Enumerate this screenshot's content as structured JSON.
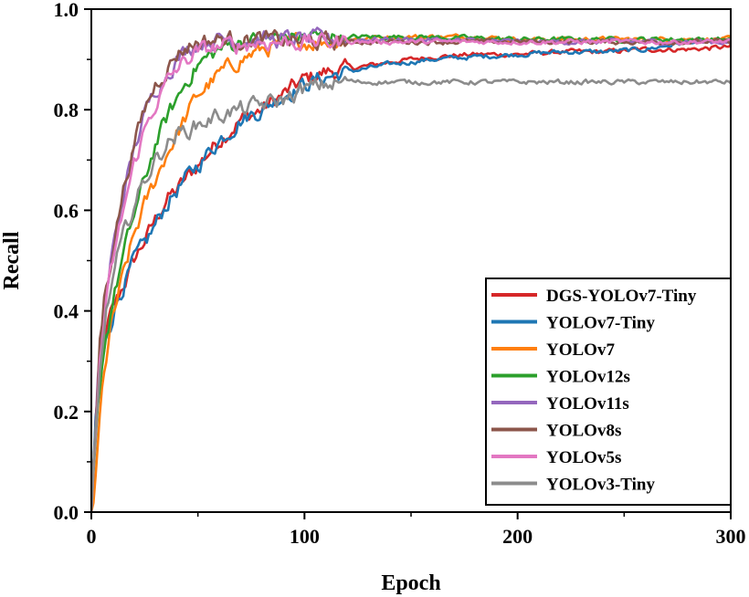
{
  "chart_data": {
    "type": "line",
    "title": "",
    "xlabel": "Epoch",
    "ylabel": "Recall",
    "xlim": [
      0,
      300
    ],
    "ylim": [
      0.0,
      1.0
    ],
    "xticks": [
      0,
      100,
      200,
      300
    ],
    "xtick_labels": [
      "0",
      "100",
      "200",
      "300"
    ],
    "yticks": [
      0.0,
      0.2,
      0.4,
      0.6,
      0.8,
      1.0
    ],
    "ytick_labels": [
      "0.0",
      "0.2",
      "0.4",
      "0.6",
      "0.8",
      "1.0"
    ],
    "grid": false,
    "legend_position": "bottom-right",
    "series": [
      {
        "name": "DGS-YOLOv7-Tiny",
        "color": "#d62728",
        "x": [
          0,
          2,
          5,
          8,
          12,
          16,
          20,
          25,
          30,
          35,
          40,
          50,
          60,
          70,
          80,
          90,
          100,
          110,
          120,
          140,
          160,
          180,
          200,
          220,
          240,
          260,
          280,
          300
        ],
        "y": [
          0.0,
          0.18,
          0.3,
          0.37,
          0.42,
          0.46,
          0.5,
          0.54,
          0.58,
          0.62,
          0.64,
          0.69,
          0.74,
          0.78,
          0.8,
          0.83,
          0.86,
          0.875,
          0.88,
          0.895,
          0.905,
          0.91,
          0.91,
          0.915,
          0.915,
          0.92,
          0.92,
          0.925
        ]
      },
      {
        "name": "YOLOv7-Tiny",
        "color": "#1f77b4",
        "x": [
          0,
          2,
          5,
          8,
          12,
          16,
          20,
          25,
          30,
          35,
          40,
          50,
          60,
          70,
          80,
          90,
          100,
          110,
          120,
          140,
          160,
          180,
          200,
          220,
          240,
          260,
          280,
          300
        ],
        "y": [
          0.0,
          0.18,
          0.3,
          0.37,
          0.42,
          0.46,
          0.5,
          0.53,
          0.57,
          0.61,
          0.64,
          0.69,
          0.74,
          0.78,
          0.8,
          0.83,
          0.85,
          0.865,
          0.875,
          0.89,
          0.9,
          0.905,
          0.91,
          0.915,
          0.915,
          0.92,
          0.935,
          0.935
        ]
      },
      {
        "name": "YOLOv7",
        "color": "#ff7f0e",
        "x": [
          0,
          2,
          4,
          6,
          10,
          15,
          20,
          25,
          30,
          35,
          40,
          45,
          50,
          60,
          70,
          80,
          90,
          100,
          120,
          140,
          160,
          180,
          200,
          250,
          300
        ],
        "y": [
          0.0,
          0.06,
          0.18,
          0.28,
          0.38,
          0.47,
          0.55,
          0.61,
          0.66,
          0.71,
          0.75,
          0.79,
          0.83,
          0.87,
          0.9,
          0.92,
          0.93,
          0.935,
          0.94,
          0.945,
          0.945,
          0.945,
          0.94,
          0.94,
          0.94
        ]
      },
      {
        "name": "YOLOv12s",
        "color": "#2ca02c",
        "x": [
          0,
          2,
          4,
          6,
          10,
          15,
          20,
          25,
          30,
          35,
          40,
          45,
          50,
          60,
          70,
          80,
          100,
          120,
          150,
          200,
          250,
          300
        ],
        "y": [
          0.0,
          0.12,
          0.25,
          0.33,
          0.42,
          0.51,
          0.59,
          0.66,
          0.73,
          0.78,
          0.82,
          0.86,
          0.89,
          0.92,
          0.935,
          0.94,
          0.945,
          0.945,
          0.945,
          0.94,
          0.94,
          0.94
        ]
      },
      {
        "name": "YOLOv11s",
        "color": "#9467bd",
        "x": [
          0,
          2,
          4,
          6,
          10,
          15,
          20,
          25,
          30,
          35,
          40,
          45,
          50,
          60,
          70,
          80,
          100,
          150,
          200,
          250,
          300
        ],
        "y": [
          0.0,
          0.15,
          0.32,
          0.4,
          0.52,
          0.63,
          0.72,
          0.79,
          0.84,
          0.87,
          0.9,
          0.92,
          0.935,
          0.94,
          0.94,
          0.94,
          0.94,
          0.94,
          0.935,
          0.935,
          0.935
        ]
      },
      {
        "name": "YOLOv8s",
        "color": "#8c564b",
        "x": [
          0,
          2,
          4,
          6,
          10,
          15,
          20,
          25,
          30,
          35,
          40,
          45,
          50,
          60,
          70,
          80,
          100,
          150,
          200,
          250,
          300
        ],
        "y": [
          0.0,
          0.16,
          0.34,
          0.42,
          0.53,
          0.64,
          0.73,
          0.8,
          0.85,
          0.88,
          0.91,
          0.925,
          0.935,
          0.94,
          0.94,
          0.94,
          0.935,
          0.935,
          0.935,
          0.935,
          0.935
        ]
      },
      {
        "name": "YOLOv5s",
        "color": "#e377c2",
        "x": [
          0,
          2,
          4,
          6,
          10,
          15,
          20,
          25,
          30,
          35,
          40,
          45,
          50,
          60,
          70,
          80,
          100,
          150,
          200,
          250,
          300
        ],
        "y": [
          0.0,
          0.14,
          0.3,
          0.38,
          0.49,
          0.6,
          0.69,
          0.76,
          0.81,
          0.85,
          0.88,
          0.9,
          0.915,
          0.925,
          0.93,
          0.935,
          0.935,
          0.935,
          0.935,
          0.935,
          0.935
        ]
      },
      {
        "name": "YOLOv3-Tiny",
        "color": "#8c8c8c",
        "x": [
          0,
          2,
          5,
          8,
          12,
          16,
          20,
          25,
          30,
          35,
          40,
          50,
          60,
          70,
          80,
          90,
          100,
          110,
          120,
          140,
          160,
          180,
          200,
          220,
          240,
          260,
          280,
          300
        ],
        "y": [
          0.0,
          0.15,
          0.33,
          0.42,
          0.5,
          0.56,
          0.61,
          0.66,
          0.7,
          0.73,
          0.75,
          0.77,
          0.79,
          0.8,
          0.81,
          0.82,
          0.84,
          0.85,
          0.855,
          0.855,
          0.855,
          0.855,
          0.855,
          0.855,
          0.855,
          0.855,
          0.855,
          0.855
        ]
      }
    ]
  }
}
